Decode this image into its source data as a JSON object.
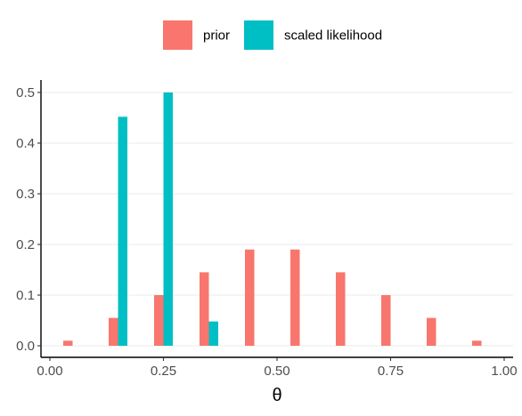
{
  "chart_data": {
    "type": "bar",
    "xlabel": "θ",
    "ylabel": "",
    "x": [
      0.05,
      0.15,
      0.25,
      0.35,
      0.45,
      0.55,
      0.65,
      0.75,
      0.85,
      0.95
    ],
    "xlim": [
      0,
      1
    ],
    "ylim": [
      0,
      0.5
    ],
    "x_ticks": [
      0,
      0.25,
      0.5,
      0.75,
      1.0
    ],
    "x_tick_labels": [
      "0.00",
      "0.25",
      "0.50",
      "0.75",
      "1.00"
    ],
    "y_ticks": [
      0,
      0.1,
      0.2,
      0.3,
      0.4,
      0.5
    ],
    "y_tick_labels": [
      "0.0",
      "0.1",
      "0.2",
      "0.3",
      "0.4",
      "0.5"
    ],
    "grid": "horizontal",
    "legend_position": "top",
    "series": [
      {
        "name": "prior",
        "color": "#F8766D",
        "values": [
          0.01,
          0.055,
          0.1,
          0.145,
          0.19,
          0.19,
          0.145,
          0.1,
          0.055,
          0.01
        ]
      },
      {
        "name": "scaled likelihood",
        "color": "#00BFC4",
        "values": [
          0,
          0.452,
          0.5,
          0.048,
          0,
          0,
          0,
          0,
          0,
          0
        ]
      }
    ]
  }
}
